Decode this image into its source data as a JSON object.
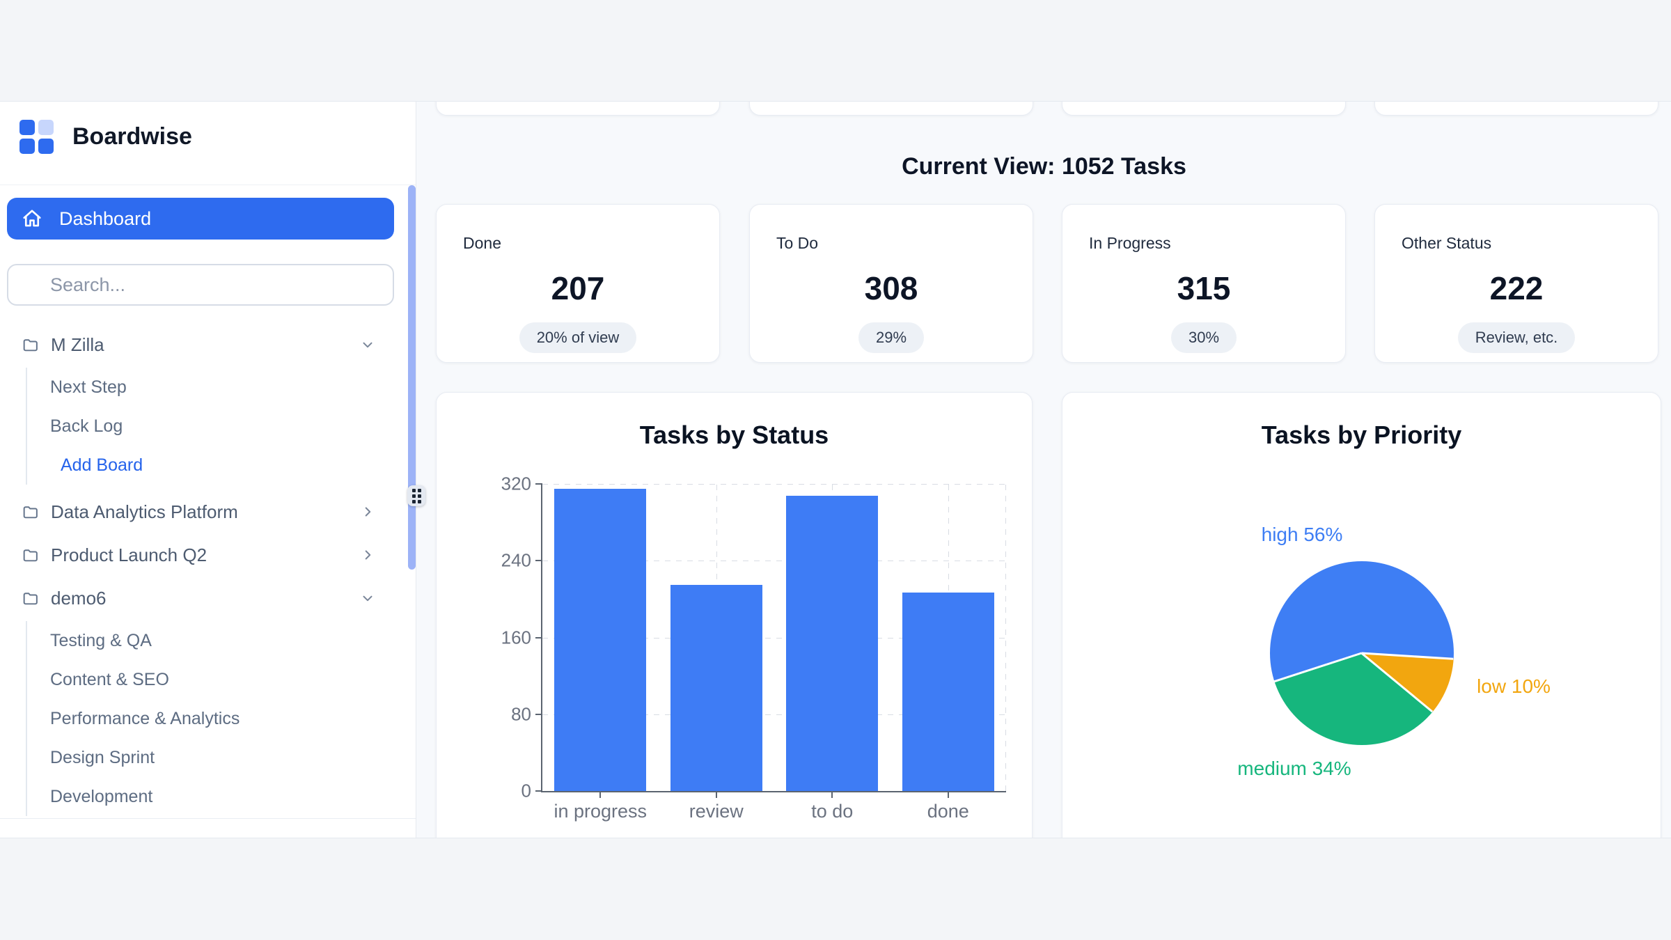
{
  "app": {
    "title": "Boardwise"
  },
  "sidebar": {
    "logo_title": "Boardwise",
    "dashboard_label": "Dashboard",
    "search_placeholder": "Search...",
    "groups": [
      {
        "label": "M Zilla",
        "chevron": "down",
        "children": [
          {
            "label": "Next Step",
            "link": false
          },
          {
            "label": "Back Log",
            "link": false
          },
          {
            "label": "Add Board",
            "link": true
          }
        ]
      },
      {
        "label": "Data Analytics Platform",
        "chevron": "right",
        "children": []
      },
      {
        "label": "Product Launch Q2",
        "chevron": "right",
        "children": []
      },
      {
        "label": "demo6",
        "chevron": "down",
        "children": [
          {
            "label": "Testing & QA",
            "link": false
          },
          {
            "label": "Content & SEO",
            "link": false
          },
          {
            "label": "Performance & Analytics",
            "link": false
          },
          {
            "label": "Design Sprint",
            "link": false
          },
          {
            "label": "Development",
            "link": false
          }
        ]
      }
    ]
  },
  "main": {
    "heading": "Current View: 1052 Tasks",
    "stat_cards": [
      {
        "label": "Done",
        "value": "207",
        "badge": "20% of view"
      },
      {
        "label": "To Do",
        "value": "308",
        "badge": "29%"
      },
      {
        "label": "In Progress",
        "value": "315",
        "badge": "30%"
      },
      {
        "label": "Other Status",
        "value": "222",
        "badge": "Review, etc."
      }
    ]
  },
  "chart_data": [
    {
      "type": "bar",
      "title": "Tasks by Status",
      "categories": [
        "in progress",
        "review",
        "to do",
        "done"
      ],
      "values": [
        315,
        215,
        308,
        207
      ],
      "xlabel": "",
      "ylabel": "",
      "ylim": [
        0,
        320
      ],
      "yticks": [
        0,
        80,
        160,
        240,
        320
      ],
      "grid": true,
      "bar_color": "#3e7cf5"
    },
    {
      "type": "pie",
      "title": "Tasks by Priority",
      "rotation_deg": 252,
      "slices": [
        {
          "label": "high",
          "pct": 56,
          "color": "#3e7ef4"
        },
        {
          "label": "low",
          "pct": 10,
          "color": "#f2a60f"
        },
        {
          "label": "medium",
          "pct": 34,
          "color": "#16b67d"
        }
      ],
      "legend_position": "outside-labels"
    }
  ],
  "colors": {
    "accent_blue": "#2e6bef",
    "bar_blue": "#3e7cf5",
    "pie_green": "#16b67d",
    "pie_orange": "#f2a60f",
    "scroll_thumb": "#9db3f7",
    "main_bg": "#f7f9fc",
    "band_bg": "#f3f5f8"
  }
}
